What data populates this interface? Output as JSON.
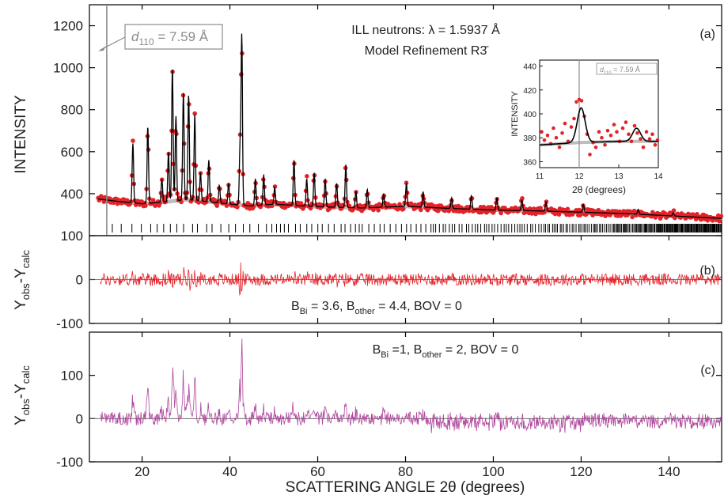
{
  "chart_data": [
    {
      "type": "line",
      "panel": "a",
      "panel_label": "(a)",
      "annotation_title": "ILL neutrons: λ = 1.5937 Å",
      "annotation_model": "Model Refinement R3̄",
      "callout": {
        "symbol": "d",
        "subscript": "110",
        "rest": " = 7.59 Å",
        "x": 11.95
      },
      "xlim": [
        8,
        152
      ],
      "ylim": [
        200,
        1300
      ],
      "ylabel": "INTENSITY",
      "yticks": [
        400,
        600,
        800,
        1000,
        1200
      ],
      "colors": {
        "observed": "#e2232a",
        "calculated": "#000000",
        "background": "#bdbdbd",
        "callout": "#8c8c8c"
      },
      "background_curve": {
        "x": [
          10,
          15,
          20,
          25,
          30,
          35,
          40,
          45,
          50,
          60,
          70,
          80,
          90,
          100,
          110,
          120,
          130,
          140,
          152
        ],
        "y": [
          375,
          362,
          352,
          360,
          372,
          362,
          350,
          342,
          350,
          338,
          332,
          340,
          330,
          322,
          318,
          312,
          305,
          295,
          282
        ]
      },
      "peaks": [
        {
          "x": 17.9,
          "y": 640
        },
        {
          "x": 21.3,
          "y": 720
        },
        {
          "x": 24.5,
          "y": 470
        },
        {
          "x": 26.0,
          "y": 600
        },
        {
          "x": 26.9,
          "y": 1000
        },
        {
          "x": 27.7,
          "y": 770
        },
        {
          "x": 29.4,
          "y": 880
        },
        {
          "x": 30.6,
          "y": 870
        },
        {
          "x": 32.0,
          "y": 780
        },
        {
          "x": 33.3,
          "y": 500
        },
        {
          "x": 35.2,
          "y": 560
        },
        {
          "x": 37.6,
          "y": 440
        },
        {
          "x": 39.7,
          "y": 450
        },
        {
          "x": 42.3,
          "y": 620
        },
        {
          "x": 42.7,
          "y": 1150
        },
        {
          "x": 45.8,
          "y": 470
        },
        {
          "x": 47.7,
          "y": 490
        },
        {
          "x": 50.2,
          "y": 430
        },
        {
          "x": 54.6,
          "y": 560
        },
        {
          "x": 57.5,
          "y": 470
        },
        {
          "x": 59.2,
          "y": 500
        },
        {
          "x": 61.7,
          "y": 470
        },
        {
          "x": 64.3,
          "y": 450
        },
        {
          "x": 66.4,
          "y": 540
        },
        {
          "x": 68.7,
          "y": 410
        },
        {
          "x": 71.3,
          "y": 420
        },
        {
          "x": 75.0,
          "y": 400
        },
        {
          "x": 80.2,
          "y": 450
        },
        {
          "x": 84.0,
          "y": 410
        },
        {
          "x": 90.5,
          "y": 380
        },
        {
          "x": 95.0,
          "y": 390
        },
        {
          "x": 100.8,
          "y": 380
        },
        {
          "x": 106.5,
          "y": 370
        },
        {
          "x": 112.0,
          "y": 360
        },
        {
          "x": 120.5,
          "y": 350
        },
        {
          "x": 133.0,
          "y": 325
        },
        {
          "x": 141.0,
          "y": 310
        }
      ],
      "inset": {
        "xlim": [
          11,
          14
        ],
        "ylim": [
          355,
          445
        ],
        "xticks": [
          11,
          12,
          13,
          14
        ],
        "yticks": [
          360,
          380,
          400,
          420,
          440
        ],
        "xlabel": "2θ (degrees)",
        "ylabel": "INTENSITY",
        "callout": {
          "symbol": "d",
          "subscript": "110",
          "rest": " = 7.59 Å"
        },
        "marker_x": 12.0,
        "calc_peaks": [
          {
            "x": 12.05,
            "y": 405
          },
          {
            "x": 13.45,
            "y": 388
          }
        ],
        "background": {
          "x": [
            11,
            12,
            13,
            14
          ],
          "y": [
            374,
            376,
            377,
            377
          ]
        },
        "observed_points": [
          [
            11.05,
            385
          ],
          [
            11.12,
            378
          ],
          [
            11.2,
            382
          ],
          [
            11.28,
            375
          ],
          [
            11.35,
            388
          ],
          [
            11.42,
            380
          ],
          [
            11.5,
            372
          ],
          [
            11.57,
            384
          ],
          [
            11.64,
            392
          ],
          [
            11.72,
            377
          ],
          [
            11.8,
            389
          ],
          [
            11.87,
            396
          ],
          [
            11.93,
            410
          ],
          [
            12.0,
            412
          ],
          [
            12.06,
            411
          ],
          [
            12.13,
            398
          ],
          [
            12.2,
            383
          ],
          [
            12.27,
            366
          ],
          [
            12.35,
            376
          ],
          [
            12.42,
            372
          ],
          [
            12.5,
            385
          ],
          [
            12.57,
            380
          ],
          [
            12.65,
            374
          ],
          [
            12.72,
            386
          ],
          [
            12.8,
            382
          ],
          [
            12.88,
            391
          ],
          [
            12.95,
            385
          ],
          [
            13.02,
            377
          ],
          [
            13.1,
            388
          ],
          [
            13.18,
            393
          ],
          [
            13.25,
            383
          ],
          [
            13.32,
            377
          ],
          [
            13.4,
            390
          ],
          [
            13.47,
            384
          ],
          [
            13.55,
            379
          ],
          [
            13.62,
            372
          ],
          [
            13.7,
            385
          ],
          [
            13.78,
            379
          ],
          [
            13.85,
            383
          ],
          [
            13.92,
            374
          ],
          [
            13.98,
            378
          ]
        ]
      }
    },
    {
      "type": "line",
      "panel": "b",
      "panel_label": "(b)",
      "ylabel": "Y_obs - Y_calc",
      "ylim": [
        -100,
        100
      ],
      "yticks": [
        -100,
        0,
        100
      ],
      "color": "#e2232a",
      "annotation": {
        "B_Bi": "3.6",
        "B_other": "4.4",
        "BOV": "0"
      }
    },
    {
      "type": "line",
      "panel": "c",
      "panel_label": "(c)",
      "ylabel": "Y_obs - Y_calc",
      "xlabel": "SCATTERING ANGLE 2θ (degrees)",
      "xticks": [
        20,
        40,
        60,
        80,
        100,
        120,
        140
      ],
      "ylim": [
        -100,
        200
      ],
      "yticks": [
        -100,
        0,
        100
      ],
      "color": "#b0479d",
      "annotation": {
        "B_Bi": "1",
        "B_other": "2",
        "BOV": "0"
      }
    }
  ]
}
